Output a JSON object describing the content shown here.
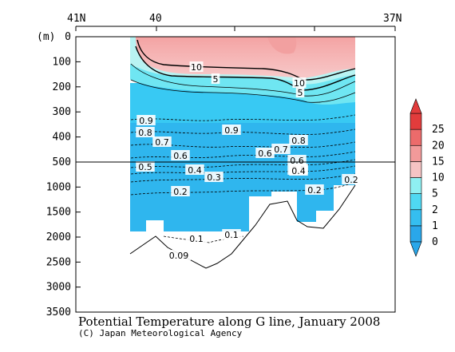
{
  "chart_data": {
    "type": "heatmap",
    "title": "Potential Temperature along G line, January 2008",
    "credit": "(C) Japan Meteorological Agency",
    "y_unit_label": "(m)",
    "x_ticks": [
      "41N",
      "40",
      "37N"
    ],
    "y_ticks": [
      "0",
      "100",
      "200",
      "300",
      "400",
      "500",
      "1000",
      "1500",
      "2000",
      "2500",
      "3000",
      "3500"
    ],
    "y_range_m": [
      0,
      3500
    ],
    "y_axis_break_m": 500,
    "colorbar": {
      "levels": [
        "0",
        "1",
        "2",
        "5",
        "10",
        "15",
        "20",
        "25"
      ],
      "colors": [
        "#2aa7ea",
        "#35bef0",
        "#4fd8f2",
        "#8ff0f2",
        "#f6c4c4",
        "#f29a9a",
        "#ec6b6b",
        "#e23c3c"
      ]
    },
    "contour_labels": [
      "10",
      "5",
      "10",
      "5",
      "0.9",
      "0.8",
      "0.7",
      "0.9",
      "0.8",
      "0.7",
      "0.6",
      "0.6",
      "0.6",
      "0.5",
      "0.4",
      "0.3",
      "0.2",
      "0.6",
      "0.5",
      "0.4",
      "0.2",
      "0.2",
      "0.1",
      "0.1",
      "0.09"
    ]
  }
}
